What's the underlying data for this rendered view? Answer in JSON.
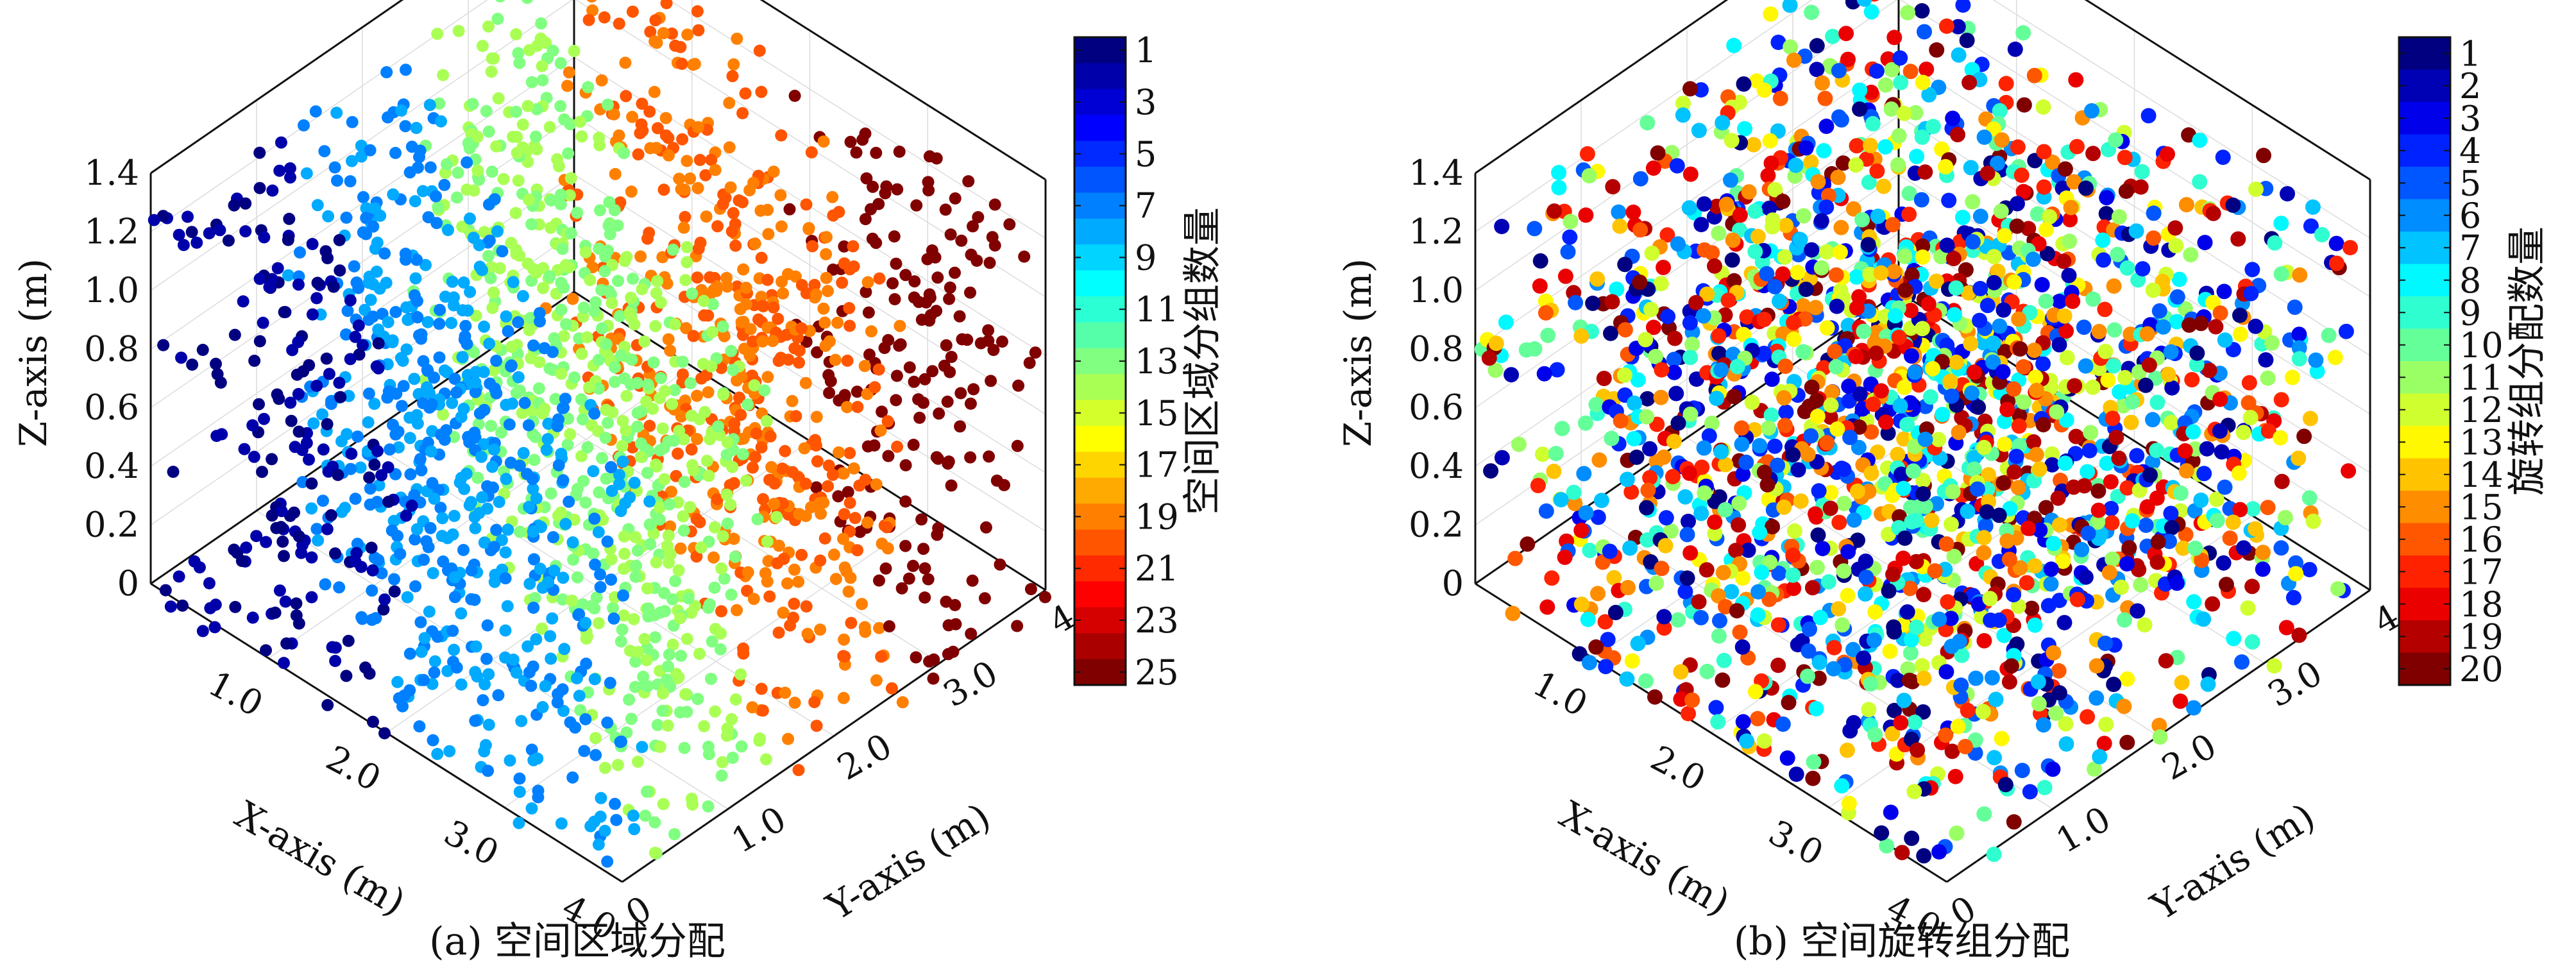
{
  "chart_data": [
    {
      "type": "scatter",
      "caption": "(a) 空间区域分配",
      "xlabel": "X-axis (m)",
      "ylabel": "Y-axis (m)",
      "zlabel": "Z-axis (m)",
      "xlim": [
        0,
        4.0
      ],
      "ylim": [
        0,
        4.0
      ],
      "zlim": [
        0,
        1.4
      ],
      "x_ticks": [
        "1.0",
        "2.0",
        "3.0",
        "4.0"
      ],
      "y_ticks": [
        "0",
        "1.0",
        "2.0",
        "3.0",
        "4.0"
      ],
      "z_ticks": [
        "0",
        "0.2",
        "0.4",
        "0.6",
        "0.8",
        "1.0",
        "1.2",
        "1.4"
      ],
      "z_layers": [
        0,
        0.4,
        0.8,
        1.2
      ],
      "colorbar": {
        "label": "空间区域分组数量",
        "min": 1,
        "max": 25,
        "ticks": [
          "1",
          "3",
          "5",
          "7",
          "9",
          "11",
          "13",
          "15",
          "17",
          "19",
          "21",
          "23",
          "25"
        ]
      },
      "color_rule": "spatial-region",
      "grid": true
    },
    {
      "type": "scatter",
      "caption": "(b) 空间旋转组分配",
      "xlabel": "X-axis (m)",
      "ylabel": "Y-axis (m)",
      "zlabel": "Z-axis (m)",
      "xlim": [
        0,
        4.0
      ],
      "ylim": [
        0,
        4.0
      ],
      "zlim": [
        0,
        1.4
      ],
      "x_ticks": [
        "1.0",
        "2.0",
        "3.0",
        "4.0"
      ],
      "y_ticks": [
        "0",
        "1.0",
        "2.0",
        "3.0",
        "4.0"
      ],
      "z_ticks": [
        "0",
        "0.2",
        "0.4",
        "0.6",
        "0.8",
        "1.0",
        "1.2",
        "1.4"
      ],
      "z_layers": [
        0,
        0.4,
        0.8,
        1.2
      ],
      "colorbar": {
        "label": "旋转组分配数量",
        "min": 1,
        "max": 20,
        "ticks": [
          "1",
          "2",
          "3",
          "4",
          "5",
          "6",
          "7",
          "8",
          "9",
          "10",
          "11",
          "12",
          "13",
          "14",
          "15",
          "16",
          "17",
          "18",
          "19",
          "20"
        ]
      },
      "color_rule": "random-rotation",
      "grid": true
    }
  ]
}
